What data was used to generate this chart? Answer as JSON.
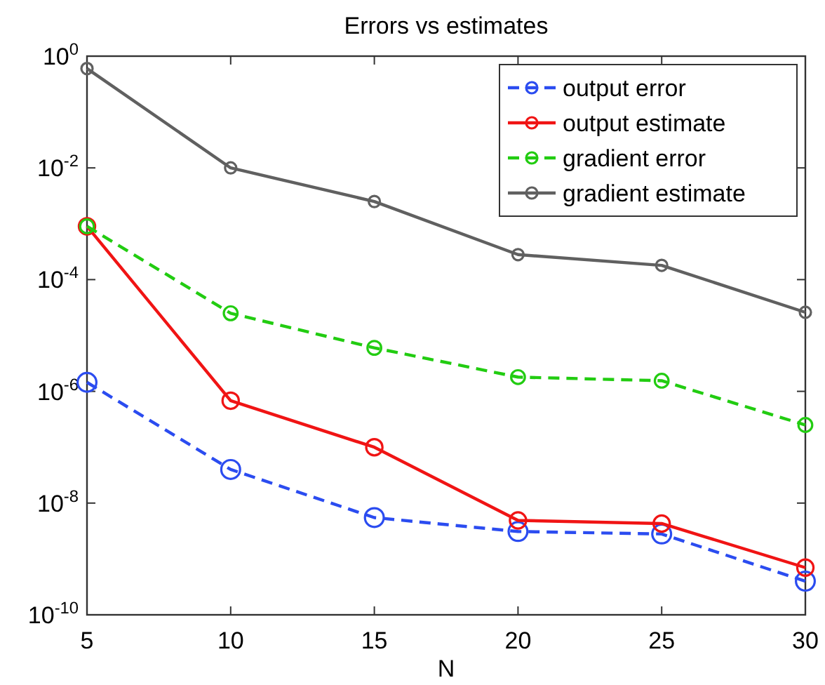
{
  "chart_data": {
    "type": "line",
    "title": "Errors vs estimates",
    "xlabel": "N",
    "x": [
      5,
      10,
      15,
      20,
      25,
      30
    ],
    "series": [
      {
        "name": "output error",
        "color": "#2b4cf0",
        "line_style": "dashed",
        "values": [
          1.45e-06,
          4e-08,
          5.5e-09,
          3.1e-09,
          2.8e-09,
          4e-10
        ]
      },
      {
        "name": "output estimate",
        "color": "#f01414",
        "line_style": "solid",
        "values": [
          0.0009,
          6.8e-07,
          1e-07,
          4.9e-09,
          4.3e-09,
          7e-10
        ]
      },
      {
        "name": "gradient error",
        "color": "#22cc11",
        "line_style": "dashed",
        "values": [
          0.0009,
          2.5e-05,
          6e-06,
          1.8e-06,
          1.55e-06,
          2.5e-07
        ]
      },
      {
        "name": "gradient estimate",
        "color": "#606060",
        "line_style": "solid",
        "values": [
          0.6,
          0.01,
          0.0025,
          0.00028,
          0.00018,
          2.6e-05
        ]
      }
    ],
    "xlim": [
      5,
      30
    ],
    "xticks": [
      5,
      10,
      15,
      20,
      25,
      30
    ],
    "ylim": [
      1e-10,
      1
    ],
    "yticks": [
      {
        "value": 1,
        "label": "10$^{0}$"
      },
      {
        "value": 0.01,
        "label": "10$^{-2}$"
      },
      {
        "value": 0.0001,
        "label": "10$^{-4}$"
      },
      {
        "value": 1e-06,
        "label": "10$^{-6}$"
      },
      {
        "value": 1e-08,
        "label": "10$^{-8}$"
      },
      {
        "value": 1e-10,
        "label": "10$^{-10}$"
      }
    ],
    "log": "y",
    "grid": false,
    "legend": "top right",
    "marker": "circle"
  }
}
